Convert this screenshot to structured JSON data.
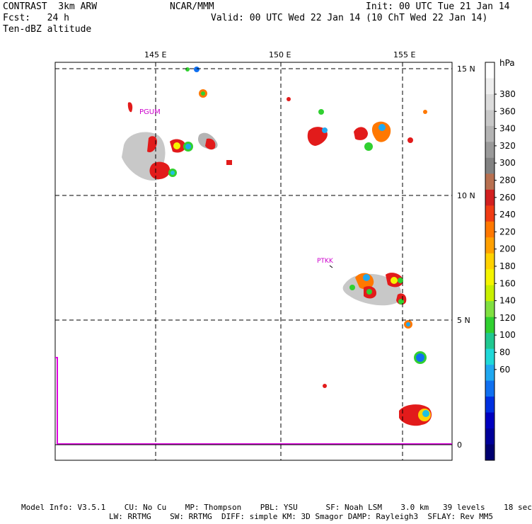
{
  "header": {
    "model": "CONTRAST  3km ARW",
    "org": "NCAR/MMM",
    "init": "Init: 00 UTC Tue 21 Jan 14",
    "fcst": "Fcst:   24 h",
    "valid": "Valid: 00 UTC Wed 22 Jan 14 (10 ChT Wed 22 Jan 14)",
    "field": "Ten-dBZ altitude"
  },
  "map": {
    "lon_labels": [
      "145 E",
      "150 E",
      "155 E"
    ],
    "lat_labels": [
      "15 N",
      "10 N",
      "5 N",
      "0"
    ],
    "stations": [
      "PGUM",
      "PTKK"
    ],
    "grid_style": "dashed",
    "boundary_color": "#e000e0"
  },
  "colorbar": {
    "unit": "hPa",
    "labels": [
      "380",
      "360",
      "340",
      "320",
      "300",
      "280",
      "260",
      "240",
      "220",
      "200",
      "180",
      "160",
      "140",
      "120",
      "100",
      "80",
      "60"
    ],
    "colors": [
      "#ffffff",
      "#eeeeee",
      "#dcdcdc",
      "#c8c8c8",
      "#b4b4b4",
      "#9a9a9a",
      "#828282",
      "#b87050",
      "#d22020",
      "#f03c14",
      "#ff7800",
      "#ffa000",
      "#ffd200",
      "#f5f500",
      "#c8f000",
      "#80e040",
      "#30d030",
      "#20c890",
      "#20d8d8",
      "#20a8f0",
      "#1070f0",
      "#0030e0",
      "#0000c0",
      "#00009a",
      "#000070"
    ]
  },
  "footer": {
    "line1": "Model Info: V3.5.1    CU: No Cu    MP: Thompson    PBL: YSU      SF: Noah LSM    3.0 km   39 levels    18 sec",
    "line2": "LW: RRTMG    SW: RRTMG  DIFF: simple KM: 3D Smagor DAMP: Rayleigh3  SFLAY: Rev MM5"
  }
}
